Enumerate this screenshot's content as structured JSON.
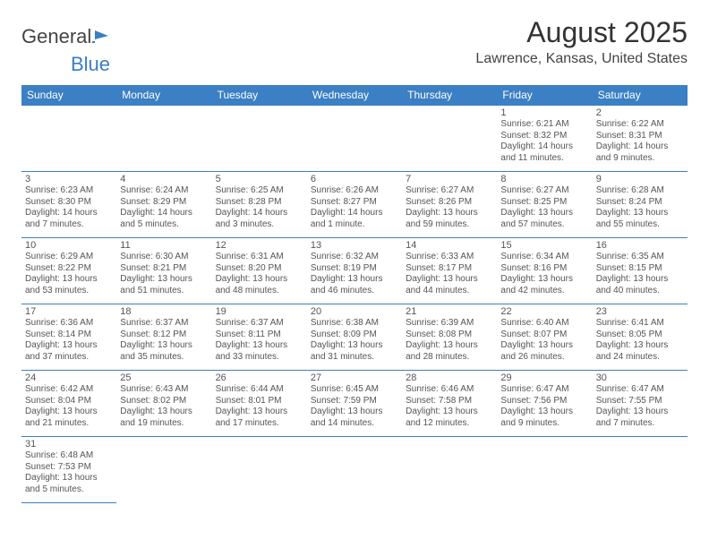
{
  "logo": {
    "text1": "General",
    "text2": "Blue"
  },
  "title": "August 2025",
  "location": "Lawrence, Kansas, United States",
  "colors": {
    "header_bg": "#3b7fc4",
    "border": "#3b7fc4",
    "text": "#555"
  },
  "weekdays": [
    "Sunday",
    "Monday",
    "Tuesday",
    "Wednesday",
    "Thursday",
    "Friday",
    "Saturday"
  ],
  "weeks": [
    [
      null,
      null,
      null,
      null,
      null,
      {
        "d": "1",
        "sr": "6:21 AM",
        "ss": "8:32 PM",
        "dl": "14 hours and 11 minutes."
      },
      {
        "d": "2",
        "sr": "6:22 AM",
        "ss": "8:31 PM",
        "dl": "14 hours and 9 minutes."
      }
    ],
    [
      {
        "d": "3",
        "sr": "6:23 AM",
        "ss": "8:30 PM",
        "dl": "14 hours and 7 minutes."
      },
      {
        "d": "4",
        "sr": "6:24 AM",
        "ss": "8:29 PM",
        "dl": "14 hours and 5 minutes."
      },
      {
        "d": "5",
        "sr": "6:25 AM",
        "ss": "8:28 PM",
        "dl": "14 hours and 3 minutes."
      },
      {
        "d": "6",
        "sr": "6:26 AM",
        "ss": "8:27 PM",
        "dl": "14 hours and 1 minute."
      },
      {
        "d": "7",
        "sr": "6:27 AM",
        "ss": "8:26 PM",
        "dl": "13 hours and 59 minutes."
      },
      {
        "d": "8",
        "sr": "6:27 AM",
        "ss": "8:25 PM",
        "dl": "13 hours and 57 minutes."
      },
      {
        "d": "9",
        "sr": "6:28 AM",
        "ss": "8:24 PM",
        "dl": "13 hours and 55 minutes."
      }
    ],
    [
      {
        "d": "10",
        "sr": "6:29 AM",
        "ss": "8:22 PM",
        "dl": "13 hours and 53 minutes."
      },
      {
        "d": "11",
        "sr": "6:30 AM",
        "ss": "8:21 PM",
        "dl": "13 hours and 51 minutes."
      },
      {
        "d": "12",
        "sr": "6:31 AM",
        "ss": "8:20 PM",
        "dl": "13 hours and 48 minutes."
      },
      {
        "d": "13",
        "sr": "6:32 AM",
        "ss": "8:19 PM",
        "dl": "13 hours and 46 minutes."
      },
      {
        "d": "14",
        "sr": "6:33 AM",
        "ss": "8:17 PM",
        "dl": "13 hours and 44 minutes."
      },
      {
        "d": "15",
        "sr": "6:34 AM",
        "ss": "8:16 PM",
        "dl": "13 hours and 42 minutes."
      },
      {
        "d": "16",
        "sr": "6:35 AM",
        "ss": "8:15 PM",
        "dl": "13 hours and 40 minutes."
      }
    ],
    [
      {
        "d": "17",
        "sr": "6:36 AM",
        "ss": "8:14 PM",
        "dl": "13 hours and 37 minutes."
      },
      {
        "d": "18",
        "sr": "6:37 AM",
        "ss": "8:12 PM",
        "dl": "13 hours and 35 minutes."
      },
      {
        "d": "19",
        "sr": "6:37 AM",
        "ss": "8:11 PM",
        "dl": "13 hours and 33 minutes."
      },
      {
        "d": "20",
        "sr": "6:38 AM",
        "ss": "8:09 PM",
        "dl": "13 hours and 31 minutes."
      },
      {
        "d": "21",
        "sr": "6:39 AM",
        "ss": "8:08 PM",
        "dl": "13 hours and 28 minutes."
      },
      {
        "d": "22",
        "sr": "6:40 AM",
        "ss": "8:07 PM",
        "dl": "13 hours and 26 minutes."
      },
      {
        "d": "23",
        "sr": "6:41 AM",
        "ss": "8:05 PM",
        "dl": "13 hours and 24 minutes."
      }
    ],
    [
      {
        "d": "24",
        "sr": "6:42 AM",
        "ss": "8:04 PM",
        "dl": "13 hours and 21 minutes."
      },
      {
        "d": "25",
        "sr": "6:43 AM",
        "ss": "8:02 PM",
        "dl": "13 hours and 19 minutes."
      },
      {
        "d": "26",
        "sr": "6:44 AM",
        "ss": "8:01 PM",
        "dl": "13 hours and 17 minutes."
      },
      {
        "d": "27",
        "sr": "6:45 AM",
        "ss": "7:59 PM",
        "dl": "13 hours and 14 minutes."
      },
      {
        "d": "28",
        "sr": "6:46 AM",
        "ss": "7:58 PM",
        "dl": "13 hours and 12 minutes."
      },
      {
        "d": "29",
        "sr": "6:47 AM",
        "ss": "7:56 PM",
        "dl": "13 hours and 9 minutes."
      },
      {
        "d": "30",
        "sr": "6:47 AM",
        "ss": "7:55 PM",
        "dl": "13 hours and 7 minutes."
      }
    ],
    [
      {
        "d": "31",
        "sr": "6:48 AM",
        "ss": "7:53 PM",
        "dl": "13 hours and 5 minutes."
      },
      null,
      null,
      null,
      null,
      null,
      null
    ]
  ],
  "labels": {
    "sunrise": "Sunrise:",
    "sunset": "Sunset:",
    "daylight": "Daylight:"
  }
}
